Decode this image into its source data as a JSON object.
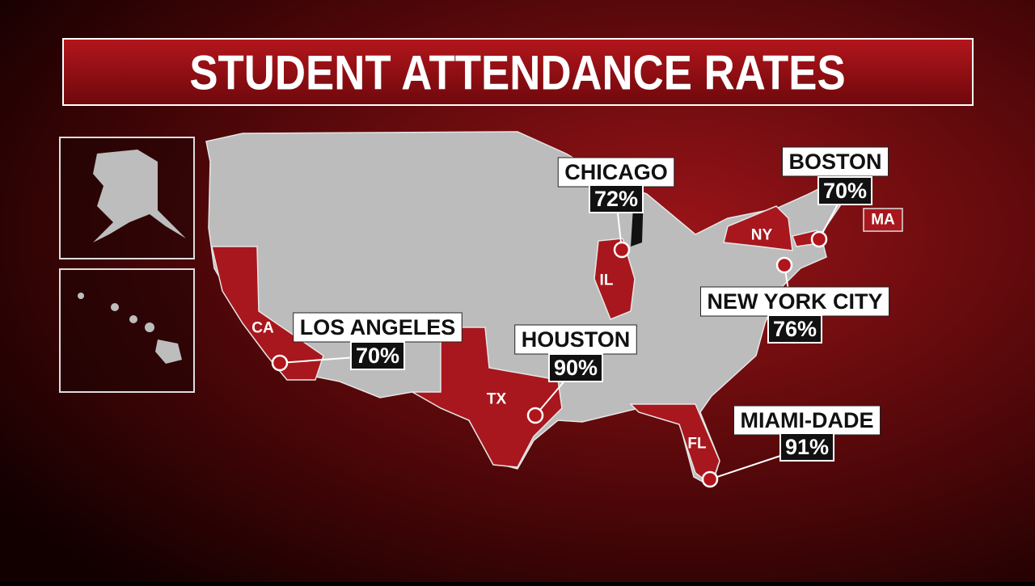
{
  "header": {
    "title": "STUDENT ATTENDANCE RATES"
  },
  "cities": [
    {
      "name": "CHICAGO",
      "rate": "72%"
    },
    {
      "name": "BOSTON",
      "rate": "70%"
    },
    {
      "name": "NEW YORK CITY",
      "rate": "76%"
    },
    {
      "name": "LOS ANGELES",
      "rate": "70%"
    },
    {
      "name": "HOUSTON",
      "rate": "90%"
    },
    {
      "name": "MIAMI-DADE",
      "rate": "91%"
    }
  ],
  "states": [
    "CA",
    "IL",
    "TX",
    "FL",
    "NY",
    "MA"
  ]
}
